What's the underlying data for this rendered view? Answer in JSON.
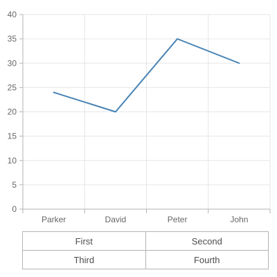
{
  "chart_data": {
    "type": "line",
    "categories": [
      "Parker",
      "David",
      "Peter",
      "John"
    ],
    "series": [
      {
        "values": [
          24,
          20,
          35,
          30
        ],
        "color": "#4682b4"
      }
    ],
    "ylim": [
      0,
      40
    ],
    "yticks": [
      0,
      5,
      10,
      15,
      20,
      25,
      30,
      35,
      40
    ],
    "grid": true
  },
  "legend_table": {
    "rows": [
      [
        "First",
        "Second"
      ],
      [
        "Third",
        "Fourth"
      ]
    ]
  }
}
